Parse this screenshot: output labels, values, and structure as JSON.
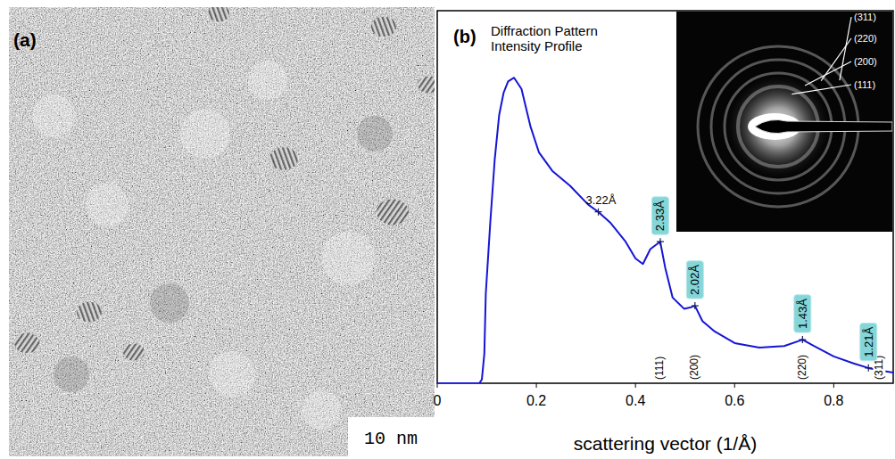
{
  "tem_image": {
    "label": "(a)",
    "scale_bar": "10 nm"
  },
  "chart_data": {
    "type": "line",
    "panel_label": "(b)",
    "title": "Diffraction Pattern Intensity Profile",
    "xlabel": "scattering vector (1/Å)",
    "x": [
      0,
      0.085,
      0.09,
      0.095,
      0.098,
      0.107,
      0.116,
      0.125,
      0.134,
      0.143,
      0.155,
      0.17,
      0.188,
      0.205,
      0.232,
      0.268,
      0.304,
      0.325,
      0.35,
      0.38,
      0.4,
      0.415,
      0.43,
      0.44,
      0.45,
      0.46,
      0.475,
      0.498,
      0.51,
      0.52,
      0.535,
      0.56,
      0.6,
      0.65,
      0.7,
      0.737,
      0.76,
      0.8,
      0.84,
      0.87,
      0.9,
      0.92
    ],
    "values": [
      0,
      0,
      1,
      8,
      24,
      43,
      60,
      72,
      78,
      81,
      82,
      79,
      69,
      62,
      57,
      53,
      48,
      46,
      43,
      38,
      33.5,
      32,
      36,
      37,
      38,
      31,
      23,
      20,
      20.3,
      20.8,
      16.7,
      13.9,
      10.8,
      9.6,
      10,
      11.7,
      10,
      7.2,
      5.3,
      4.1,
      3.3,
      2.9
    ],
    "color": "#1515d5",
    "xlim": [
      0,
      0.92
    ],
    "xticks": [
      0,
      0.2,
      0.4,
      0.6,
      0.8
    ],
    "ylim": [
      0,
      100
    ],
    "tick_labels": "x",
    "grid": false,
    "annotations": [
      {
        "x": 0.325,
        "y": 46,
        "text": "3.22Å"
      }
    ],
    "peak_labels": [
      {
        "x": 0.45,
        "y": 38,
        "text": "2.33Å"
      },
      {
        "x": 0.52,
        "y": 20.8,
        "text": "2.02Å"
      },
      {
        "x": 0.737,
        "y": 11.7,
        "text": "1.43Å"
      },
      {
        "x": 0.87,
        "y": 4.1,
        "text": "1.21Å"
      }
    ],
    "reflections": [
      {
        "x": 0.45,
        "label": "(111)"
      },
      {
        "x": 0.52,
        "label": "(200)"
      },
      {
        "x": 0.737,
        "label": "(220)"
      },
      {
        "x": 0.87,
        "label": "(311)"
      }
    ],
    "inset": {
      "ring_labels": [
        "(311)",
        "(220)",
        "(200)",
        "(111)"
      ]
    }
  }
}
